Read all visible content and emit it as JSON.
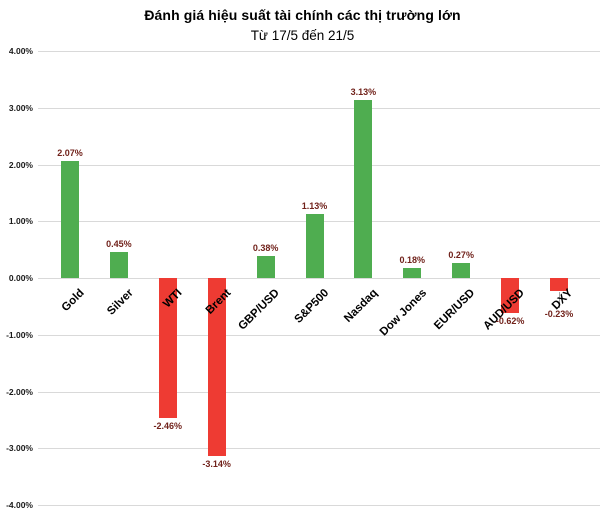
{
  "title": "Đánh giá hiệu suất tài chính các thị trường lớn",
  "subtitle": "Từ 17/5 đến 21/5",
  "colors": {
    "positive_bar": "#4FAD50",
    "negative_bar": "#EE3B33",
    "gridline": "#D9D9D9",
    "data_label": "#71221B",
    "axis_text": "#1A1A1A",
    "category_text": "#000000",
    "leader_line": "#A6A6A6",
    "background": "#FFFFFF"
  },
  "chart_data": {
    "type": "bar",
    "title": "Đánh giá hiệu suất tài chính các thị trường lớn",
    "subtitle": "Từ 17/5 đến 21/5",
    "categories": [
      "Gold",
      "Silver",
      "WTI",
      "Brent",
      "GBP/USD",
      "S&P500",
      "Nasdaq",
      "Dow Jones",
      "EUR/USD",
      "AUD/USD",
      "DXY"
    ],
    "values": [
      2.07,
      0.45,
      -2.46,
      -3.14,
      0.38,
      1.13,
      3.13,
      0.18,
      0.27,
      -0.62,
      -0.23
    ],
    "value_labels": [
      "2.07%",
      "0.45%",
      "-2.46%",
      "-3.14%",
      "0.38%",
      "1.13%",
      "3.13%",
      "0.18%",
      "0.27%",
      "-0.62%",
      "-0.23%"
    ],
    "yticks": [
      "4.00%",
      "3.00%",
      "2.00%",
      "1.00%",
      "0.00%",
      "-1.00%",
      "-2.00%",
      "-3.00%",
      "-4.00%"
    ],
    "ylim": [
      -4,
      4
    ],
    "ytick_step": 1,
    "xlabel": "",
    "ylabel": "",
    "grid": true,
    "legend": "none",
    "color_rule": "green for positive values, red for negative values",
    "labels_with_leader_line": [
      "DXY"
    ]
  }
}
